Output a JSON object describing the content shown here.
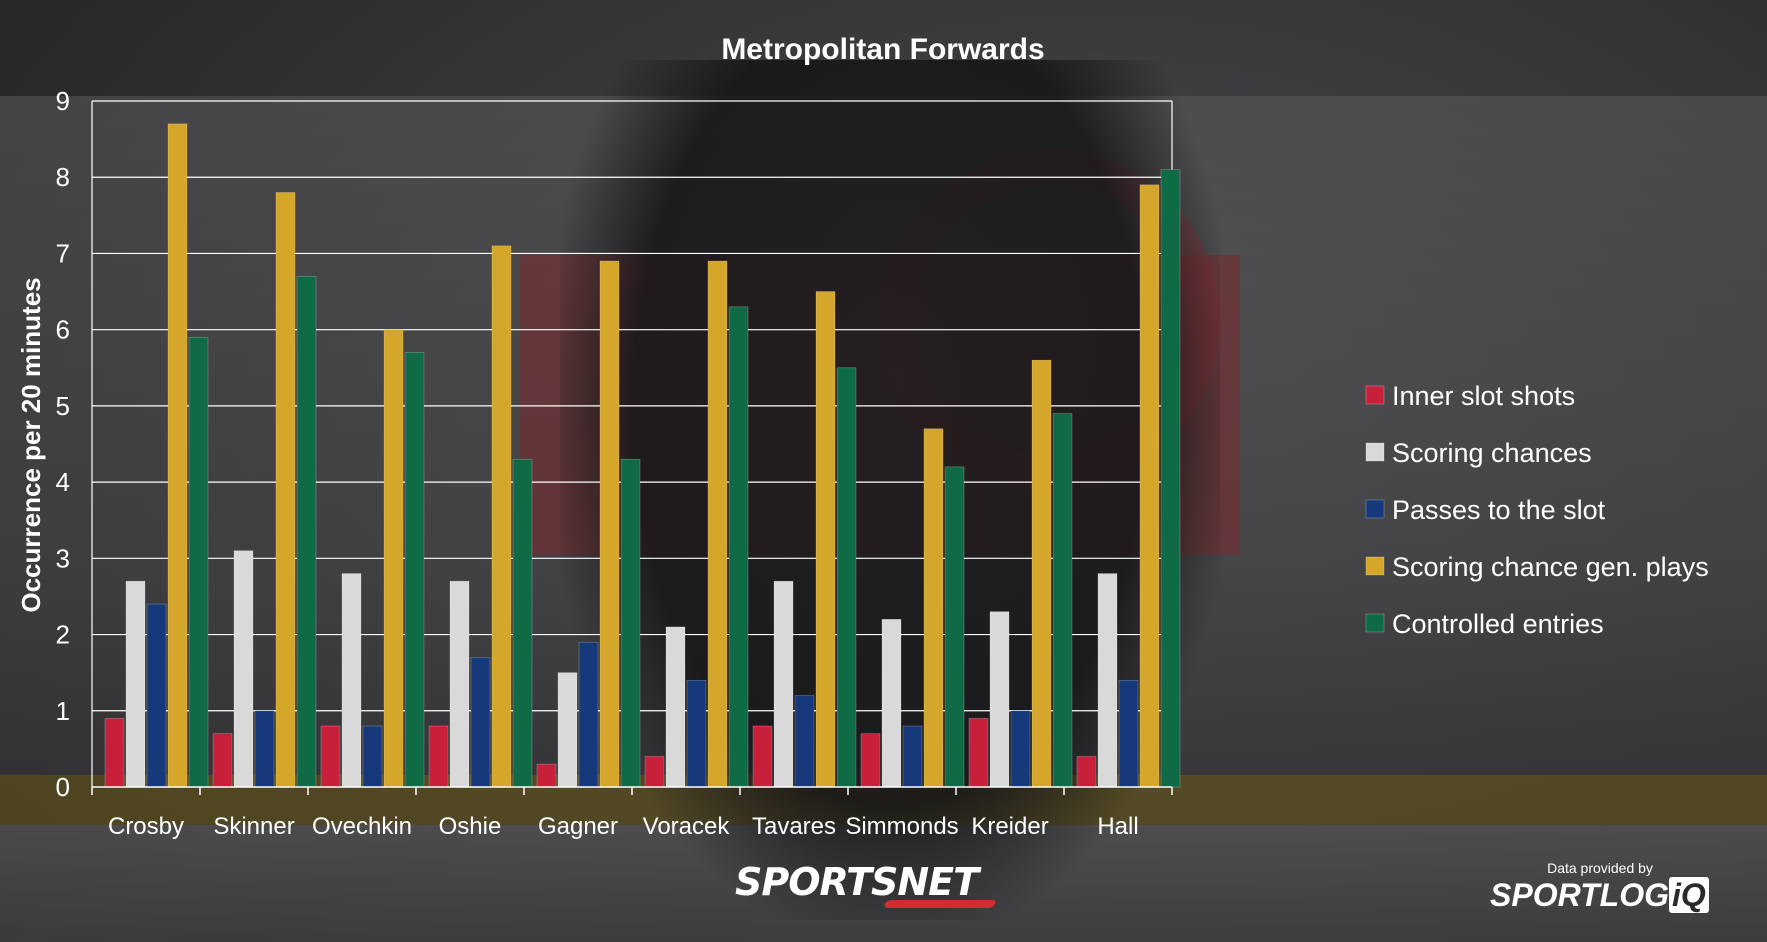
{
  "chart_data": {
    "type": "bar",
    "title": "Metropolitan Forwards",
    "xlabel": "",
    "ylabel": "Occurrence per 20 minutes",
    "ylim": [
      0,
      9
    ],
    "yticks": [
      0,
      1,
      2,
      3,
      4,
      5,
      6,
      7,
      8,
      9
    ],
    "grid": true,
    "legend_position": "right",
    "categories": [
      "Crosby",
      "Skinner",
      "Ovechkin",
      "Oshie",
      "Gagner",
      "Voracek",
      "Tavares",
      "Simmonds",
      "Kreider",
      "Hall"
    ],
    "series": [
      {
        "name": "Inner slot shots",
        "color": "#c8203a",
        "values": [
          0.9,
          0.7,
          0.8,
          0.8,
          0.3,
          0.4,
          0.8,
          0.7,
          0.9,
          0.4
        ]
      },
      {
        "name": "Scoring chances",
        "color": "#d9d9d9",
        "values": [
          2.7,
          3.1,
          2.8,
          2.7,
          1.5,
          2.1,
          2.7,
          2.2,
          2.3,
          2.8
        ]
      },
      {
        "name": "Passes to the slot",
        "color": "#15397a",
        "values": [
          2.4,
          1.0,
          0.8,
          1.7,
          1.9,
          1.4,
          1.2,
          0.8,
          1.0,
          1.4
        ]
      },
      {
        "name": "Scoring chance gen. plays",
        "color": "#d4a62a",
        "values": [
          8.7,
          7.8,
          6.0,
          7.1,
          6.9,
          6.9,
          6.5,
          4.7,
          5.6,
          7.9
        ]
      },
      {
        "name": "Controlled entries",
        "color": "#0f6b45",
        "values": [
          5.9,
          6.7,
          5.7,
          4.3,
          4.3,
          6.3,
          5.5,
          4.2,
          4.9,
          8.1
        ]
      }
    ]
  },
  "branding": {
    "sportsnet": "SPORTSNET",
    "provided_by": "Data provided by",
    "sportlogiq_main": "SPORTLOG",
    "sportlogiq_iq": "iQ"
  }
}
